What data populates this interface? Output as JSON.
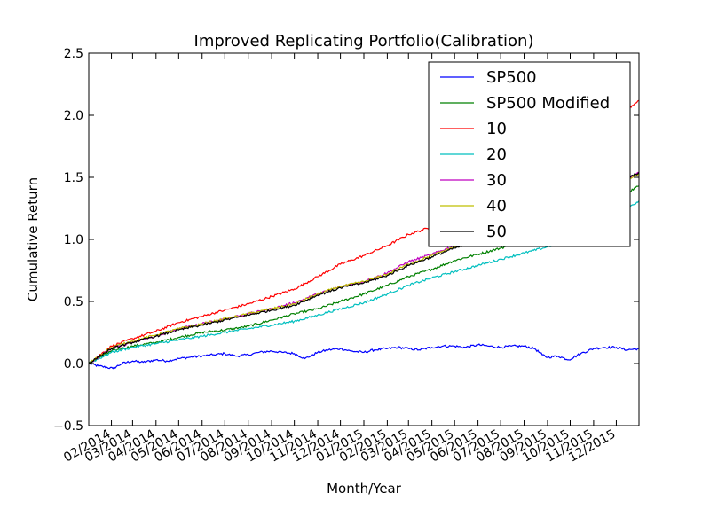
{
  "chart_data": {
    "type": "line",
    "title": "Improved Replicating Portfolio(Calibration)",
    "xlabel": "Month/Year",
    "ylabel": "Cumulative Return",
    "ylim": [
      -0.5,
      2.5
    ],
    "yticks": [
      -0.5,
      0.0,
      0.5,
      1.0,
      1.5,
      2.0,
      2.5
    ],
    "ytick_labels": [
      "−0.5",
      "0.0",
      "0.5",
      "1.0",
      "1.5",
      "2.0",
      "2.5"
    ],
    "xlim": [
      "2014-01-02",
      "2015-12-31"
    ],
    "xticks": [
      "2014-02-01",
      "2014-03-01",
      "2014-04-01",
      "2014-05-01",
      "2014-06-01",
      "2014-07-01",
      "2014-08-01",
      "2014-09-01",
      "2014-10-01",
      "2014-11-01",
      "2014-12-01",
      "2015-01-01",
      "2015-02-01",
      "2015-03-01",
      "2015-04-01",
      "2015-05-01",
      "2015-06-01",
      "2015-07-01",
      "2015-08-01",
      "2015-09-01",
      "2015-10-01",
      "2015-11-01",
      "2015-12-01"
    ],
    "xtick_labels": [
      "02/2014",
      "03/2014",
      "04/2014",
      "05/2014",
      "06/2014",
      "07/2014",
      "08/2014",
      "09/2014",
      "10/2014",
      "11/2014",
      "12/2014",
      "01/2015",
      "02/2015",
      "03/2015",
      "04/2015",
      "05/2015",
      "06/2015",
      "07/2015",
      "08/2015",
      "09/2015",
      "10/2015",
      "11/2015",
      "12/2015"
    ],
    "legend_position": "top-right",
    "grid": false,
    "series": [
      {
        "name": "SP500",
        "color": "#0000ff",
        "x": [
          "2014-01-02",
          "2014-01-15",
          "2014-02-03",
          "2014-02-15",
          "2014-03-01",
          "2014-03-15",
          "2014-04-01",
          "2014-04-15",
          "2014-05-01",
          "2014-05-15",
          "2014-06-01",
          "2014-06-15",
          "2014-07-01",
          "2014-07-15",
          "2014-08-01",
          "2014-08-15",
          "2014-09-01",
          "2014-09-15",
          "2014-10-01",
          "2014-10-15",
          "2014-11-01",
          "2014-11-15",
          "2014-12-01",
          "2014-12-15",
          "2015-01-01",
          "2015-01-15",
          "2015-02-01",
          "2015-02-15",
          "2015-03-01",
          "2015-03-15",
          "2015-04-01",
          "2015-04-15",
          "2015-05-01",
          "2015-05-15",
          "2015-06-01",
          "2015-06-15",
          "2015-07-01",
          "2015-07-15",
          "2015-08-01",
          "2015-08-15",
          "2015-08-25",
          "2015-09-01",
          "2015-09-15",
          "2015-09-29",
          "2015-10-15",
          "2015-11-01",
          "2015-11-15",
          "2015-12-01",
          "2015-12-15",
          "2015-12-31"
        ],
        "y": [
          0.0,
          -0.02,
          -0.04,
          0.0,
          0.02,
          0.01,
          0.03,
          0.02,
          0.04,
          0.05,
          0.06,
          0.07,
          0.08,
          0.06,
          0.07,
          0.09,
          0.1,
          0.09,
          0.08,
          0.04,
          0.09,
          0.11,
          0.12,
          0.1,
          0.09,
          0.11,
          0.12,
          0.13,
          0.12,
          0.11,
          0.13,
          0.14,
          0.14,
          0.13,
          0.15,
          0.14,
          0.13,
          0.14,
          0.14,
          0.12,
          0.07,
          0.05,
          0.06,
          0.03,
          0.08,
          0.12,
          0.13,
          0.13,
          0.11,
          0.12
        ]
      },
      {
        "name": "SP500 Modified",
        "color": "#008000",
        "x": [
          "2014-01-02",
          "2014-02-01",
          "2014-03-01",
          "2014-04-01",
          "2014-05-01",
          "2014-06-01",
          "2014-07-01",
          "2014-08-01",
          "2014-09-01",
          "2014-10-01",
          "2014-11-01",
          "2014-12-01",
          "2015-01-01",
          "2015-02-01",
          "2015-03-01",
          "2015-04-01",
          "2015-05-01",
          "2015-06-01",
          "2015-07-01",
          "2015-08-01",
          "2015-09-01",
          "2015-10-01",
          "2015-11-01",
          "2015-12-01",
          "2015-12-31"
        ],
        "y": [
          0.0,
          0.1,
          0.14,
          0.17,
          0.21,
          0.25,
          0.27,
          0.3,
          0.35,
          0.4,
          0.44,
          0.5,
          0.56,
          0.63,
          0.7,
          0.76,
          0.83,
          0.88,
          0.93,
          0.99,
          1.05,
          1.12,
          1.22,
          1.33,
          1.43
        ]
      },
      {
        "name": "10",
        "color": "#ff0000",
        "x": [
          "2014-01-02",
          "2014-02-01",
          "2014-03-01",
          "2014-04-01",
          "2014-05-01",
          "2014-06-01",
          "2014-07-01",
          "2014-08-01",
          "2014-09-01",
          "2014-10-01",
          "2014-11-01",
          "2014-12-01",
          "2015-01-01",
          "2015-02-01",
          "2015-03-01",
          "2015-04-01",
          "2015-05-01",
          "2015-06-01",
          "2015-07-01",
          "2015-08-01",
          "2015-09-01",
          "2015-10-01",
          "2015-11-01",
          "2015-12-01",
          "2015-12-31"
        ],
        "y": [
          0.0,
          0.14,
          0.2,
          0.26,
          0.33,
          0.38,
          0.43,
          0.48,
          0.54,
          0.6,
          0.7,
          0.8,
          0.87,
          0.95,
          1.04,
          1.1,
          1.17,
          1.24,
          1.3,
          1.4,
          1.5,
          1.62,
          1.78,
          1.98,
          2.12
        ]
      },
      {
        "name": "20",
        "color": "#00bfbf",
        "x": [
          "2014-01-02",
          "2014-02-01",
          "2014-03-01",
          "2014-04-01",
          "2014-05-01",
          "2014-06-01",
          "2014-07-01",
          "2014-08-01",
          "2014-09-01",
          "2014-10-01",
          "2014-11-01",
          "2014-12-01",
          "2015-01-01",
          "2015-02-01",
          "2015-03-01",
          "2015-04-01",
          "2015-05-01",
          "2015-06-01",
          "2015-07-01",
          "2015-08-01",
          "2015-09-01",
          "2015-10-01",
          "2015-11-01",
          "2015-12-01",
          "2015-12-31"
        ],
        "y": [
          0.0,
          0.09,
          0.13,
          0.16,
          0.19,
          0.22,
          0.25,
          0.28,
          0.31,
          0.34,
          0.39,
          0.44,
          0.49,
          0.56,
          0.63,
          0.69,
          0.74,
          0.79,
          0.84,
          0.89,
          0.94,
          1.0,
          1.09,
          1.2,
          1.31
        ]
      },
      {
        "name": "30",
        "color": "#bf00bf",
        "x": [
          "2014-01-02",
          "2014-02-01",
          "2014-03-01",
          "2014-04-01",
          "2014-05-01",
          "2014-06-01",
          "2014-07-01",
          "2014-08-01",
          "2014-09-01",
          "2014-10-01",
          "2014-11-01",
          "2014-12-01",
          "2015-01-01",
          "2015-02-01",
          "2015-03-01",
          "2015-04-01",
          "2015-05-01",
          "2015-06-01",
          "2015-07-01",
          "2015-08-01",
          "2015-09-01",
          "2015-10-01",
          "2015-11-01",
          "2015-12-01",
          "2015-12-31"
        ],
        "y": [
          0.0,
          0.12,
          0.17,
          0.22,
          0.28,
          0.32,
          0.36,
          0.4,
          0.44,
          0.49,
          0.56,
          0.62,
          0.66,
          0.73,
          0.82,
          0.88,
          0.95,
          0.99,
          1.04,
          1.1,
          1.17,
          1.24,
          1.33,
          1.43,
          1.54
        ]
      },
      {
        "name": "40",
        "color": "#bfbf00",
        "x": [
          "2014-01-02",
          "2014-02-01",
          "2014-03-01",
          "2014-04-01",
          "2014-05-01",
          "2014-06-01",
          "2014-07-01",
          "2014-08-01",
          "2014-09-01",
          "2014-10-01",
          "2014-11-01",
          "2014-12-01",
          "2015-01-01",
          "2015-02-01",
          "2015-03-01",
          "2015-04-01",
          "2015-05-01",
          "2015-06-01",
          "2015-07-01",
          "2015-08-01",
          "2015-09-01",
          "2015-10-01",
          "2015-11-01",
          "2015-12-01",
          "2015-12-31"
        ],
        "y": [
          0.0,
          0.13,
          0.18,
          0.23,
          0.28,
          0.32,
          0.36,
          0.4,
          0.44,
          0.48,
          0.56,
          0.62,
          0.66,
          0.72,
          0.8,
          0.87,
          0.94,
          0.99,
          1.04,
          1.1,
          1.16,
          1.23,
          1.32,
          1.43,
          1.53
        ]
      },
      {
        "name": "50",
        "color": "#000000",
        "x": [
          "2014-01-02",
          "2014-02-01",
          "2014-03-01",
          "2014-04-01",
          "2014-05-01",
          "2014-06-01",
          "2014-07-01",
          "2014-08-01",
          "2014-09-01",
          "2014-10-01",
          "2014-11-01",
          "2014-12-01",
          "2015-01-01",
          "2015-02-01",
          "2015-03-01",
          "2015-04-01",
          "2015-05-01",
          "2015-06-01",
          "2015-07-01",
          "2015-08-01",
          "2015-09-01",
          "2015-10-01",
          "2015-11-01",
          "2015-12-01",
          "2015-12-31"
        ],
        "y": [
          0.0,
          0.12,
          0.17,
          0.22,
          0.27,
          0.31,
          0.35,
          0.39,
          0.43,
          0.47,
          0.55,
          0.61,
          0.65,
          0.71,
          0.79,
          0.86,
          0.93,
          0.98,
          1.03,
          1.09,
          1.15,
          1.23,
          1.32,
          1.44,
          1.54
        ]
      }
    ]
  }
}
